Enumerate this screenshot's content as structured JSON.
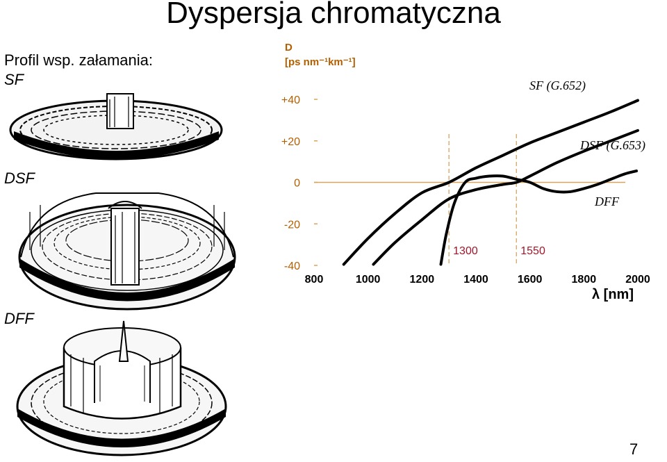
{
  "slide": {
    "title": "Dyspersja chromatyczna",
    "profile_heading": "Profil wsp. załamania:",
    "profiles": [
      "SF",
      "DSF",
      "DFF"
    ],
    "page_number": "7"
  },
  "chart_data": {
    "type": "line",
    "title": "",
    "ylabel_line1": "D",
    "ylabel_line2": "[ps nm⁻¹km⁻¹]",
    "xlabel": "λ [nm]",
    "xlim": [
      800,
      2000
    ],
    "ylim": [
      -40,
      40
    ],
    "xticks": [
      800,
      1000,
      1200,
      1400,
      1600,
      1800,
      2000
    ],
    "yticks": [
      {
        "value": 40,
        "label": "+40"
      },
      {
        "value": 20,
        "label": "+20"
      },
      {
        "value": 0,
        "label": "0"
      },
      {
        "value": -20,
        "label": "-20"
      },
      {
        "value": -40,
        "label": "-40"
      }
    ],
    "zero_line": true,
    "markers": [
      {
        "x": 1300,
        "label": "1300"
      },
      {
        "x": 1550,
        "label": "1550"
      }
    ],
    "series": [
      {
        "name": "SF (G.652)",
        "x": [
          910,
          1000,
          1100,
          1200,
          1300,
          1400,
          1500,
          1600,
          1700,
          1800,
          1900,
          2000
        ],
        "y": [
          -39.5,
          -27,
          -15,
          -5,
          0,
          7,
          13,
          19,
          24,
          29,
          34,
          39.5
        ]
      },
      {
        "name": "DSF (G.653)",
        "x": [
          1020,
          1100,
          1200,
          1300,
          1400,
          1500,
          1550,
          1600,
          1700,
          1800,
          1900,
          2000
        ],
        "y": [
          -39.5,
          -29,
          -18,
          -8,
          -3.5,
          -1,
          0,
          3,
          9.5,
          15,
          20,
          25
        ]
      },
      {
        "name": "DFF",
        "x": [
          1270,
          1290,
          1320,
          1360,
          1400,
          1450,
          1500,
          1550,
          1600,
          1650,
          1700,
          1750,
          1800,
          1850,
          1900,
          1950,
          1995
        ],
        "y": [
          -39.5,
          -25,
          -10,
          0,
          2,
          3,
          3,
          1.5,
          0,
          -3,
          -4.5,
          -4.5,
          -3,
          -1,
          1.5,
          4,
          5.5
        ]
      }
    ],
    "series_colors": {
      "line": "#000000",
      "axes": "#d9a35b",
      "tick_labels": "#b35f00",
      "marker_labels": "#a0162a"
    }
  }
}
